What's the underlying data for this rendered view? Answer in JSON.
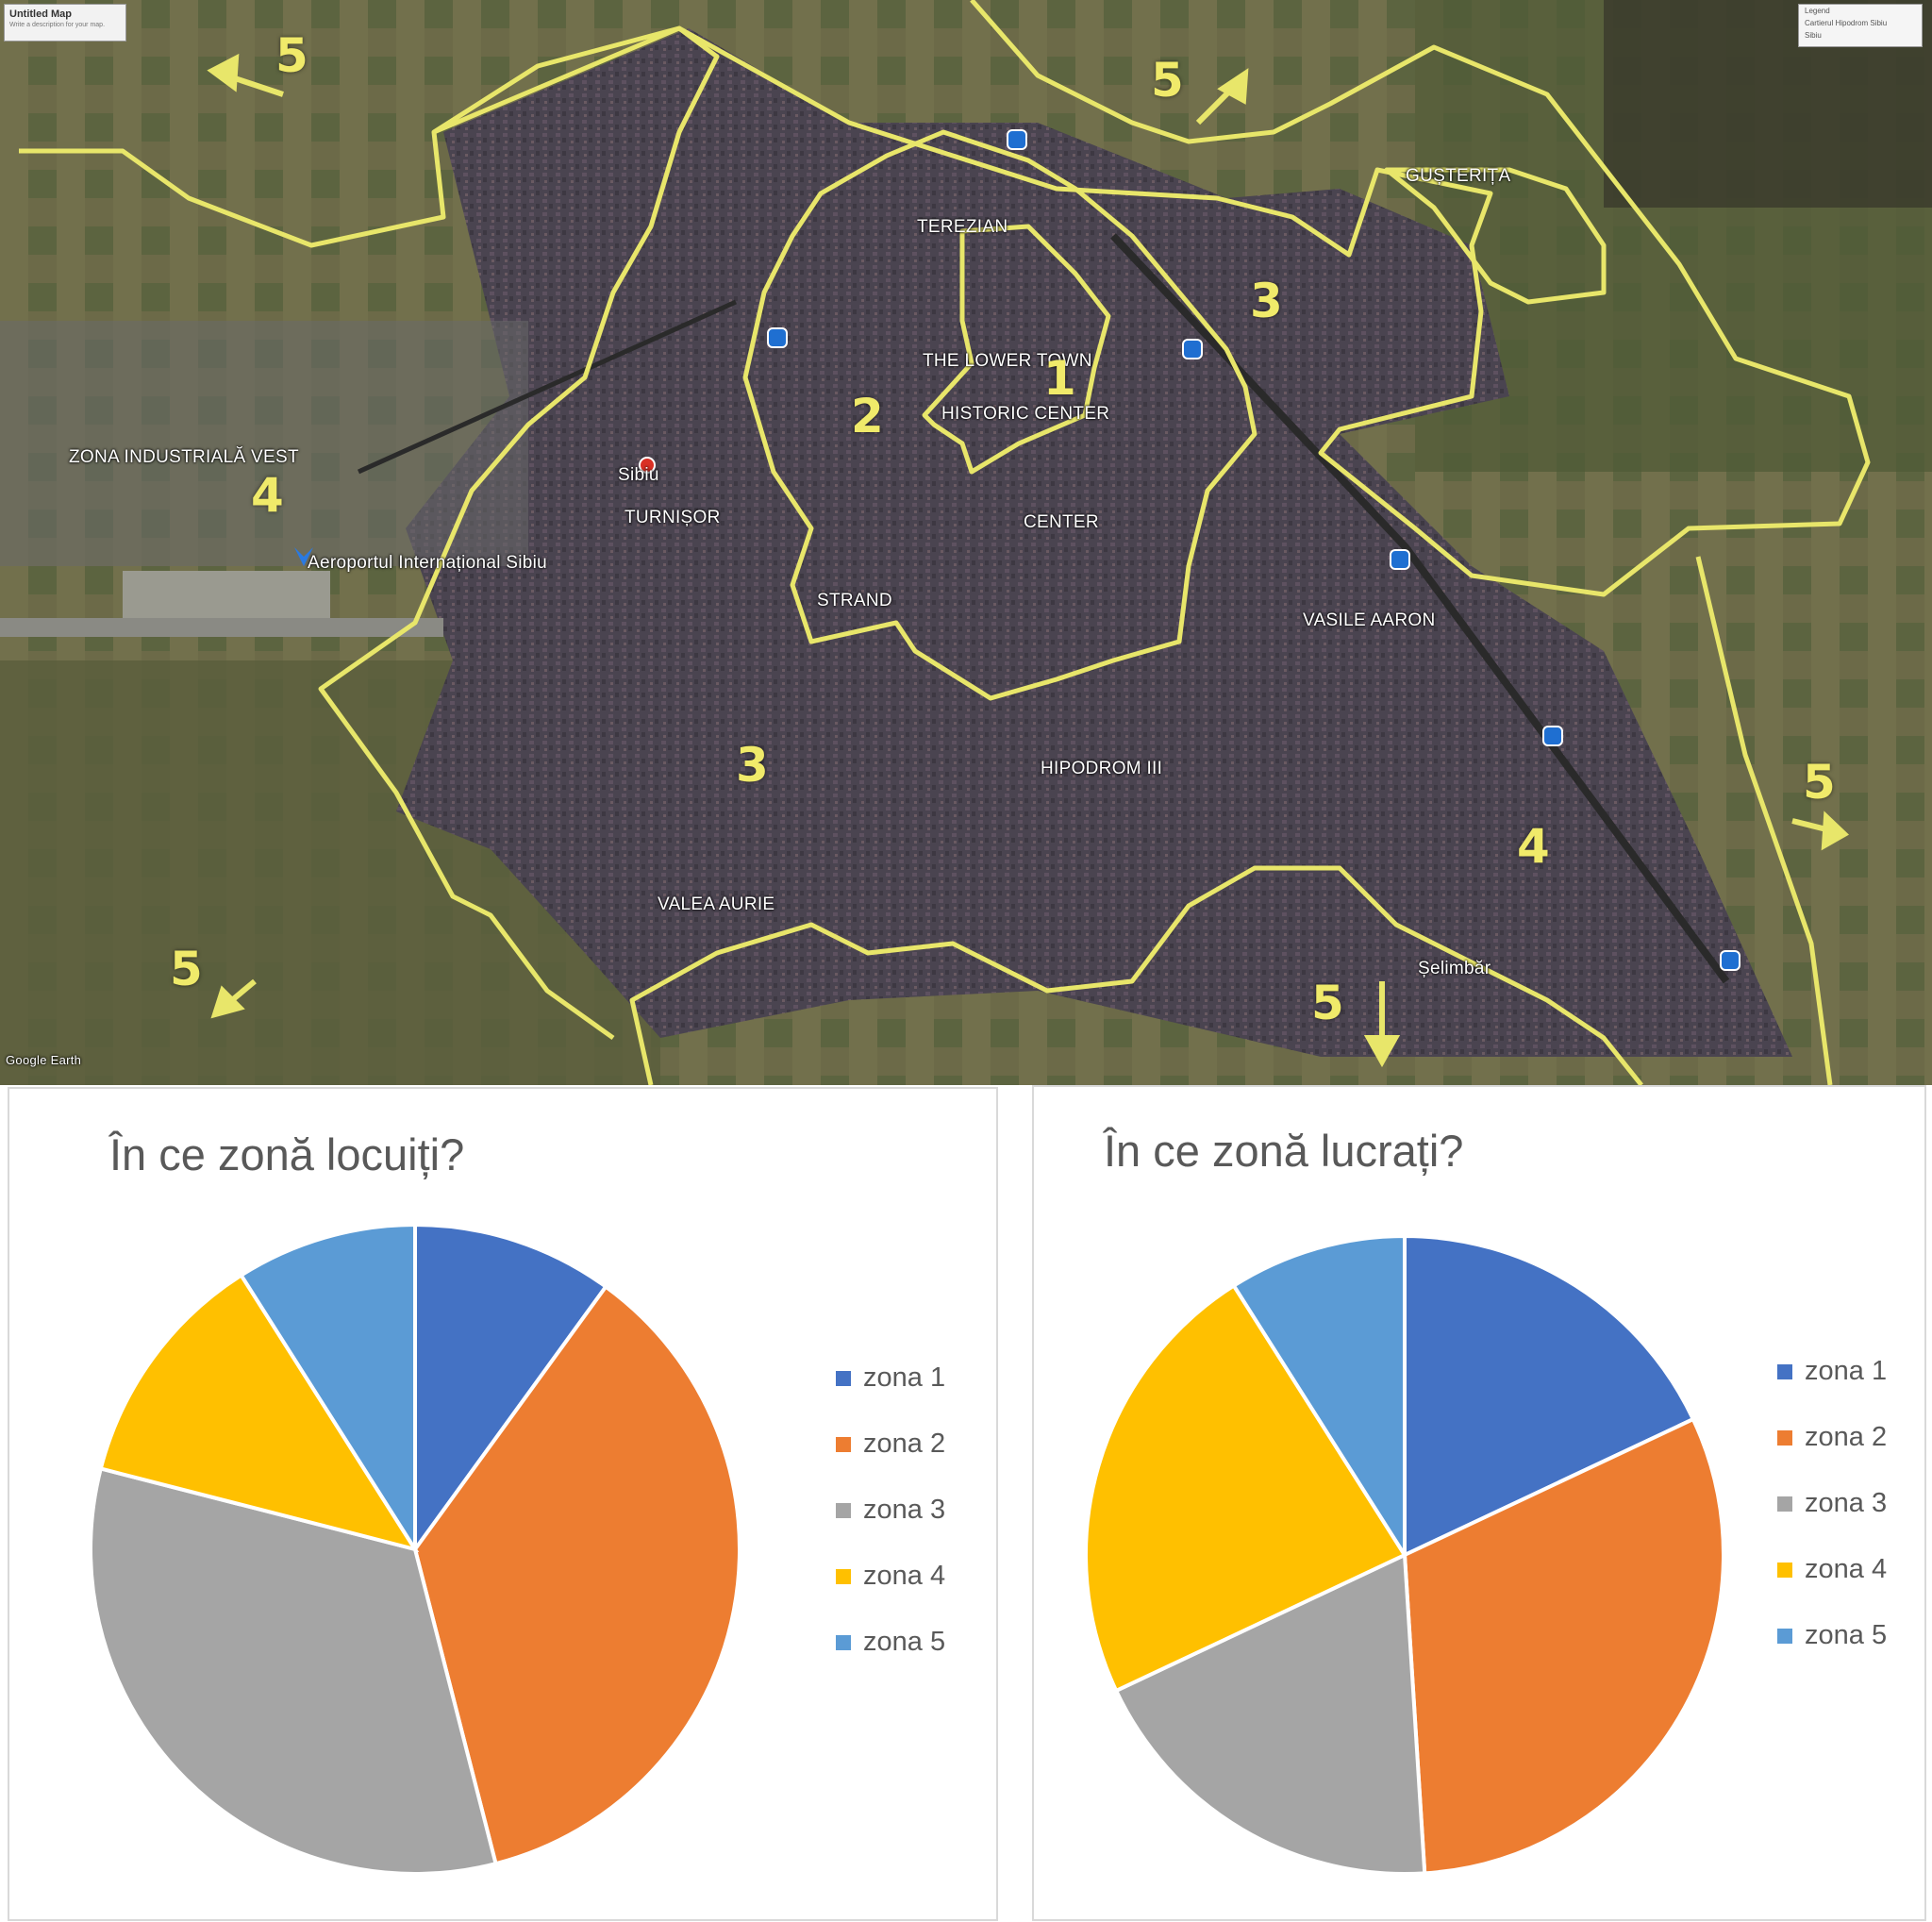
{
  "map": {
    "window_title": "Untitled Map",
    "window_subtitle": "Write a description for your map.",
    "legend_title": "Legend",
    "legend_items": [
      "Cartierul Hipodrom Sibiu",
      "Sibiu"
    ],
    "place_labels": [
      "TEREZIAN",
      "THE LOWER TOWN",
      "HISTORIC CENTER",
      "CENTER",
      "STRAND",
      "TURNIȘOR",
      "Sibiu",
      "ZONA INDUSTRIALĂ VEST",
      "Aeroportul Internațional Sibiu",
      "GUȘTERIȚA",
      "VASILE AARON",
      "HIPODROM III",
      "VALEA AURIE",
      "Șelimbăr"
    ],
    "zone_numbers": [
      "1",
      "2",
      "3",
      "3",
      "4",
      "4",
      "5",
      "5",
      "5",
      "5",
      "5"
    ],
    "attribution": "Google Earth",
    "colors": {
      "zone_outline": "#e8e66a",
      "zone_number": "#f0ea6a"
    },
    "icons": [
      "train-station-icon",
      "airport-icon",
      "location-pin-icon"
    ]
  },
  "chart_data": [
    {
      "type": "pie",
      "title": "În ce zonă locuiți?",
      "categories": [
        "zona 1",
        "zona 2",
        "zona 3",
        "zona 4",
        "zona 5"
      ],
      "values": [
        10,
        36,
        33,
        12,
        9
      ],
      "colors": [
        "#4472c4",
        "#ed7d31",
        "#a5a5a5",
        "#ffc000",
        "#5b9bd5"
      ],
      "legend_position": "right"
    },
    {
      "type": "pie",
      "title": "În ce zonă lucrați?",
      "categories": [
        "zona 1",
        "zona 2",
        "zona 3",
        "zona 4",
        "zona 5"
      ],
      "values": [
        18,
        31,
        19,
        23,
        9
      ],
      "colors": [
        "#4472c4",
        "#ed7d31",
        "#a5a5a5",
        "#ffc000",
        "#5b9bd5"
      ],
      "legend_position": "right"
    }
  ]
}
